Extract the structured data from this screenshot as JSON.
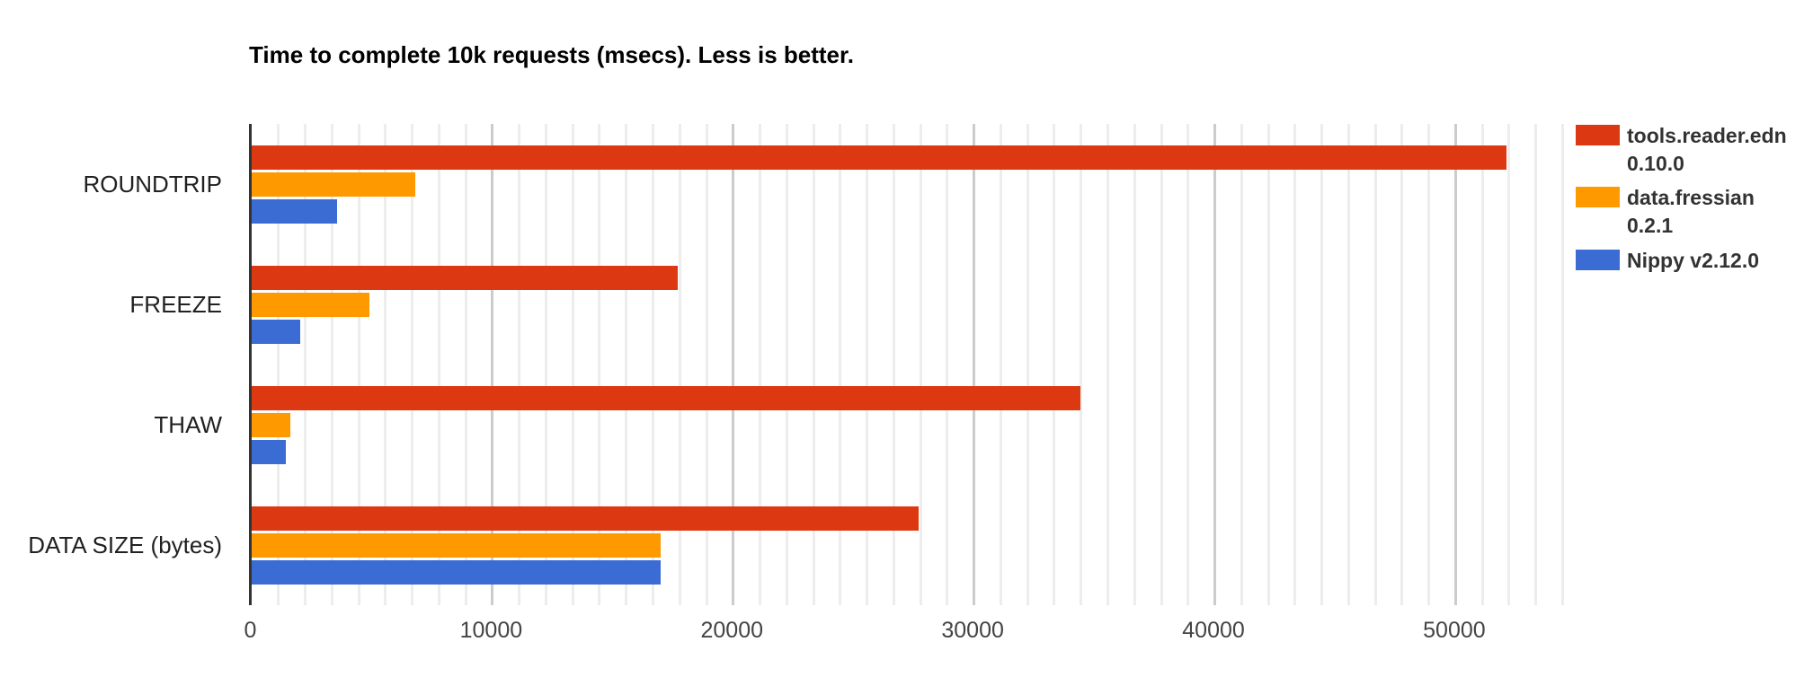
{
  "chart_data": {
    "type": "bar",
    "orientation": "horizontal",
    "title": "Time to complete 10k requests (msecs). Less is better.",
    "categories": [
      "ROUNDTRIP",
      "FREEZE",
      "THAW",
      "DATA SIZE (bytes)"
    ],
    "series": [
      {
        "name": "tools.reader.edn 0.10.0",
        "legend_lines": [
          "tools.reader.edn",
          "0.10.0"
        ],
        "color": "#dc3912",
        "values": [
          52100,
          17700,
          34400,
          27700
        ]
      },
      {
        "name": "data.fressian 0.2.1",
        "legend_lines": [
          "data.fressian",
          "0.2.1"
        ],
        "color": "#ff9900",
        "values": [
          6800,
          4900,
          1600,
          17000
        ]
      },
      {
        "name": "Nippy v2.12.0",
        "legend_lines": [
          "Nippy v2.12.0"
        ],
        "color": "#3b6cd4",
        "values": [
          3550,
          2000,
          1400,
          17000
        ]
      }
    ],
    "xlabel": "",
    "ylabel": "",
    "xlim": [
      0,
      54800
    ],
    "x_ticks": [
      0,
      10000,
      20000,
      30000,
      40000,
      50000
    ],
    "x_tick_labels": [
      "0",
      "10000",
      "20000",
      "30000",
      "40000",
      "50000"
    ],
    "minor_gridlines_per_major": 9,
    "grid": "vertical",
    "legend_position": "right"
  },
  "colors": {
    "background": "#ffffff",
    "axis_line": "#333333",
    "major_gridline": "#cccccc",
    "minor_gridline": "#ededed",
    "title_text": "#000000",
    "category_label_text": "#212121",
    "tick_label_text": "#444444",
    "legend_text": "#333333"
  }
}
